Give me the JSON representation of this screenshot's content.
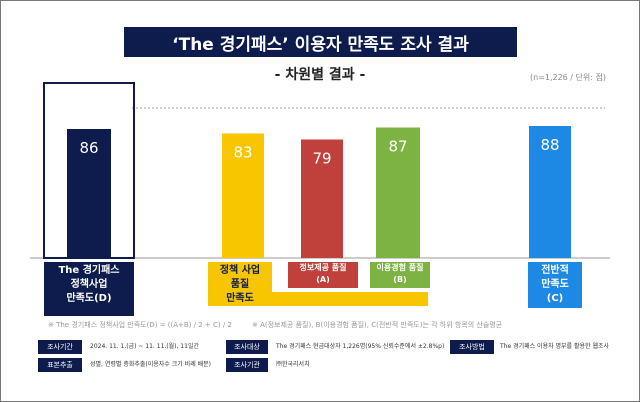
{
  "header": {
    "title": "‘The 경기패스’ 이용자 만족도 조사 결과",
    "subtitle": "- 차원별 결과 -",
    "unit": "(n=1,226 / 단위: 점)"
  },
  "colors": {
    "navy": "#0d1b4d",
    "yellow": "#f7c600",
    "red": "#c0413b",
    "green": "#7cb342",
    "blue": "#1e88e5"
  },
  "chart_data": {
    "type": "bar",
    "categories": [
      "The 경기패스 정책사업 만족도(D)",
      "정책 사업 품질 만족도",
      "정보제공 품질(A)",
      "이용경험 품질(B)",
      "전반적 만족도(C)"
    ],
    "values": [
      86,
      83,
      79,
      87,
      88
    ],
    "value_labels": [
      "86",
      "83",
      "79",
      "87",
      "88"
    ],
    "reference_line": 100,
    "grid": false
  },
  "labels": {
    "d_line1": "The 경기패스",
    "d_line2": "정책사업",
    "d_line3": "만족도(D)",
    "q_line1": "정책 사업",
    "q_line2": "품질",
    "q_line3": "만족도",
    "a_line1": "정보제공 품질",
    "a_line2": "(A)",
    "b_line1": "이용경험 품질",
    "b_line2": "(B)",
    "c_line1": "전반적",
    "c_line2": "만족도",
    "c_line3": "(C)"
  },
  "notes": {
    "formula": "※ The 경기패스 정책사업 만족도(D) = ((A+B) / 2 + C) / 2",
    "explain": "※ A(정보제공 품질), B(이용경험 품질), C(전반적 만족도)는 각 하위 항목의 산술평균"
  },
  "info": {
    "period_tag": "조사기간",
    "period_text": "2024. 11. 1.(금) ~ 11. 11.(월), 11일간",
    "target_tag": "조사대상",
    "target_text": "The 경기패스 현금대상자 1,226명(95% 신뢰수준에서 ±2.8%p)",
    "method_tag": "조사방법",
    "method_text": "The 경기패스 이용자 명부를 활용한 웹조사",
    "sampling_tag": "표본추출",
    "sampling_text": "성별, 연령별 층화추출(이용자수 크기 비례 배분)",
    "agency_tag": "조사기관",
    "agency_text": "㈜한국리서치"
  }
}
